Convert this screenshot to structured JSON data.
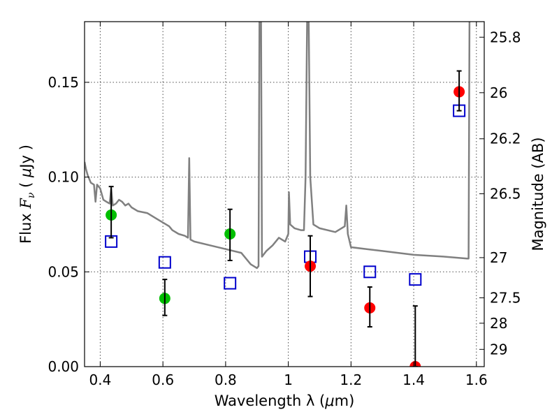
{
  "chart_data": {
    "type": "scatter",
    "xlabel_parts": [
      "Wavelength  λ (",
      "μ",
      "m)"
    ],
    "ylabel_parts": [
      "Flux  ",
      "F",
      "ν",
      "  (  ",
      "μ",
      "Jy )"
    ],
    "ylabel_right": "Magnitude (AB)",
    "xlim": [
      0.35,
      1.625
    ],
    "ylim": [
      0.0,
      0.182
    ],
    "xticks": [
      0.4,
      0.6,
      0.8,
      1.0,
      1.2,
      1.4,
      1.6
    ],
    "xtick_labels": [
      "0.4",
      "0.6",
      "0.8",
      "1",
      "1.2",
      "1.4",
      "1.6"
    ],
    "yticks": [
      0.0,
      0.05,
      0.1,
      0.15
    ],
    "ytick_labels": [
      "0.00",
      "0.05",
      "0.10",
      "0.15"
    ],
    "mag_ticks": [
      {
        "label": "25.8",
        "flux": 0.1738
      },
      {
        "label": "26",
        "flux": 0.1445
      },
      {
        "label": "26.2",
        "flux": 0.1202
      },
      {
        "label": "26.5",
        "flux": 0.0912
      },
      {
        "label": "27",
        "flux": 0.0575
      },
      {
        "label": "27.5",
        "flux": 0.0363
      },
      {
        "label": "28",
        "flux": 0.0229
      },
      {
        "label": "29",
        "flux": 0.0091
      }
    ],
    "grid": true,
    "series": [
      {
        "kind": "measured",
        "color": "#00bf00",
        "points": [
          {
            "x": 0.435,
            "y": 0.08,
            "err": [
              0.068,
              0.095
            ]
          },
          {
            "x": 0.606,
            "y": 0.036,
            "err": [
              0.027,
              0.046
            ]
          },
          {
            "x": 0.814,
            "y": 0.07,
            "err": [
              0.056,
              0.083
            ]
          }
        ]
      },
      {
        "kind": "measured",
        "color": "#ff0000",
        "points": [
          {
            "x": 1.07,
            "y": 0.053,
            "err": [
              0.037,
              0.069
            ]
          },
          {
            "x": 1.26,
            "y": 0.031,
            "err": [
              0.021,
              0.042
            ]
          },
          {
            "x": 1.405,
            "y": 0.0,
            "err": [
              0.0,
              0.032
            ]
          },
          {
            "x": 1.545,
            "y": 0.145,
            "err": [
              0.135,
              0.156
            ]
          }
        ]
      },
      {
        "kind": "model_photometry",
        "color": "#0000cc",
        "points": [
          {
            "x": 0.435,
            "y": 0.066
          },
          {
            "x": 0.606,
            "y": 0.055
          },
          {
            "x": 0.814,
            "y": 0.044
          },
          {
            "x": 1.07,
            "y": 0.058
          },
          {
            "x": 1.26,
            "y": 0.05
          },
          {
            "x": 1.405,
            "y": 0.046
          },
          {
            "x": 1.545,
            "y": 0.135
          }
        ]
      },
      {
        "kind": "model_spectrum",
        "color": "#808080",
        "points": [
          [
            0.35,
            0.108
          ],
          [
            0.355,
            0.104
          ],
          [
            0.36,
            0.101
          ],
          [
            0.37,
            0.097
          ],
          [
            0.38,
            0.096
          ],
          [
            0.385,
            0.087
          ],
          [
            0.39,
            0.096
          ],
          [
            0.4,
            0.094
          ],
          [
            0.41,
            0.088
          ],
          [
            0.42,
            0.087
          ],
          [
            0.43,
            0.086
          ],
          [
            0.435,
            0.094
          ],
          [
            0.44,
            0.085
          ],
          [
            0.45,
            0.086
          ],
          [
            0.46,
            0.088
          ],
          [
            0.47,
            0.087
          ],
          [
            0.48,
            0.085
          ],
          [
            0.49,
            0.086
          ],
          [
            0.5,
            0.084
          ],
          [
            0.52,
            0.082
          ],
          [
            0.55,
            0.081
          ],
          [
            0.58,
            0.078
          ],
          [
            0.6,
            0.076
          ],
          [
            0.62,
            0.074
          ],
          [
            0.63,
            0.072
          ],
          [
            0.65,
            0.07
          ],
          [
            0.67,
            0.069
          ],
          [
            0.68,
            0.068
          ],
          [
            0.684,
            0.11
          ],
          [
            0.688,
            0.067
          ],
          [
            0.7,
            0.066
          ],
          [
            0.75,
            0.064
          ],
          [
            0.8,
            0.062
          ],
          [
            0.85,
            0.06
          ],
          [
            0.88,
            0.054
          ],
          [
            0.9,
            0.052
          ],
          [
            0.905,
            0.053
          ],
          [
            0.908,
            0.182
          ],
          [
            0.913,
            0.182
          ],
          [
            0.916,
            0.058
          ],
          [
            0.93,
            0.061
          ],
          [
            0.95,
            0.064
          ],
          [
            0.97,
            0.068
          ],
          [
            0.99,
            0.066
          ],
          [
            1.0,
            0.07
          ],
          [
            1.002,
            0.092
          ],
          [
            1.006,
            0.075
          ],
          [
            1.02,
            0.073
          ],
          [
            1.04,
            0.072
          ],
          [
            1.05,
            0.072
          ],
          [
            1.055,
            0.1
          ],
          [
            1.06,
            0.182
          ],
          [
            1.065,
            0.182
          ],
          [
            1.07,
            0.1
          ],
          [
            1.08,
            0.075
          ],
          [
            1.1,
            0.073
          ],
          [
            1.15,
            0.071
          ],
          [
            1.18,
            0.074
          ],
          [
            1.185,
            0.085
          ],
          [
            1.19,
            0.07
          ],
          [
            1.2,
            0.063
          ],
          [
            1.25,
            0.062
          ],
          [
            1.3,
            0.061
          ],
          [
            1.4,
            0.059
          ],
          [
            1.5,
            0.058
          ],
          [
            1.57,
            0.057
          ],
          [
            1.575,
            0.057
          ],
          [
            1.578,
            0.182
          ]
        ]
      }
    ]
  }
}
